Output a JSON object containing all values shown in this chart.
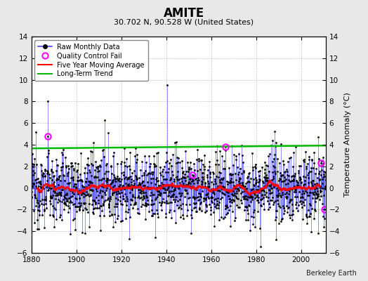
{
  "title": "AMITE",
  "subtitle": "30.702 N, 90.528 W (United States)",
  "credit": "Berkeley Earth",
  "ylabel": "Temperature Anomaly (°C)",
  "xlim": [
    1880,
    2011
  ],
  "ylim": [
    -6,
    14
  ],
  "yticks": [
    -6,
    -4,
    -2,
    0,
    2,
    4,
    6,
    8,
    10,
    12,
    14
  ],
  "xticks": [
    1880,
    1900,
    1920,
    1940,
    1960,
    1980,
    2000
  ],
  "background_color": "#e8e8e8",
  "plot_bg_color": "#ffffff",
  "raw_color": "#4444ff",
  "raw_marker_color": "#000000",
  "qc_fail_color": "#ff00ff",
  "moving_avg_color": "#ff0000",
  "trend_color": "#00bb00",
  "seed": 12345,
  "start_year": 1880,
  "end_year": 2010,
  "spike_1940_val": 9.5,
  "spike_1887_val": 8.0,
  "qc_fail_specs": [
    {
      "year": 1887,
      "month": 4,
      "val": 4.8
    },
    {
      "year": 1951,
      "month": 8,
      "val": 1.2
    },
    {
      "year": 1966,
      "month": 6,
      "val": 3.8
    },
    {
      "year": 2008,
      "month": 10,
      "val": 2.3
    },
    {
      "year": 2010,
      "month": 6,
      "val": -2.0
    }
  ],
  "noise_std": 1.6,
  "trend_slope": 0.0,
  "moving_avg_window": 60
}
